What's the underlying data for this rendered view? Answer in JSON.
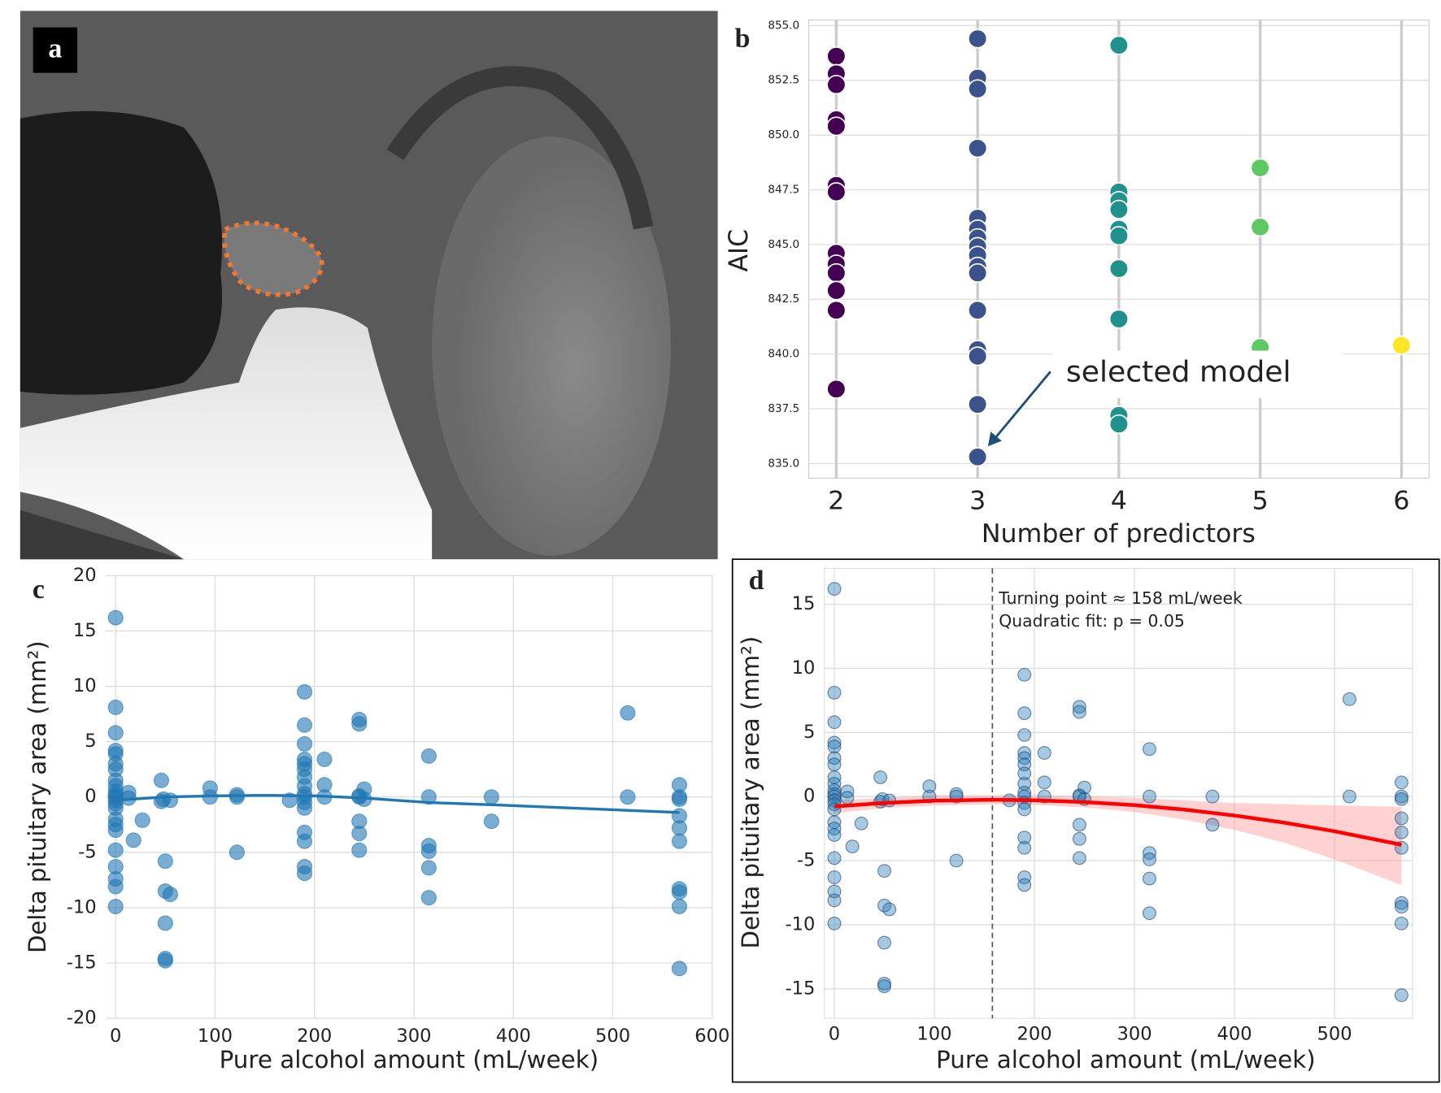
{
  "image_panel": {
    "label": "a"
  },
  "chart_data": [
    {
      "type": "scatter",
      "panel_label": "b",
      "xlabel": "Number of predictors",
      "ylabel": "AIC",
      "xlim": [
        1.805,
        6.195
      ],
      "ylim": [
        834.33,
        855.25
      ],
      "xticks": [
        2,
        3,
        4,
        5,
        6
      ],
      "yticks": [
        {
          "value": 835,
          "label": "835.0"
        },
        {
          "value": 837.5,
          "label": "837.5"
        },
        {
          "value": 840,
          "label": "840.0"
        },
        {
          "value": 842.5,
          "label": "842.5"
        },
        {
          "value": 845,
          "label": "845.0"
        },
        {
          "value": 847.5,
          "label": "847.5"
        },
        {
          "value": 850,
          "label": "850.0"
        },
        {
          "value": 852.5,
          "label": "852.5"
        },
        {
          "value": 855,
          "label": "855.0"
        }
      ],
      "grid": true,
      "annotation": "selected model",
      "series": [
        {
          "color": "#440154",
          "x": [
            2,
            2,
            2,
            2,
            2,
            2,
            2,
            2,
            2,
            2,
            2,
            2,
            2
          ],
          "values": [
            853.6,
            852.8,
            852.3,
            850.7,
            850.4,
            847.7,
            847.4,
            844.6,
            844.1,
            843.7,
            842.9,
            842.0,
            838.4
          ]
        },
        {
          "color": "#3b528b",
          "x": [
            3,
            3,
            3,
            3,
            3,
            3,
            3,
            3,
            3,
            3,
            3,
            3,
            3,
            3,
            3,
            3
          ],
          "values": [
            854.4,
            852.6,
            852.1,
            849.4,
            846.2,
            845.7,
            845.3,
            844.9,
            844.5,
            844.0,
            843.7,
            842.0,
            840.2,
            839.9,
            837.7,
            835.3
          ]
        },
        {
          "color": "#21918c",
          "x": [
            4,
            4,
            4,
            4,
            4,
            4,
            4,
            4,
            4,
            4
          ],
          "values": [
            854.1,
            847.4,
            847.0,
            846.6,
            845.7,
            845.4,
            843.9,
            841.6,
            837.2,
            836.8
          ]
        },
        {
          "color": "#5ec962",
          "x": [
            5,
            5,
            5
          ],
          "values": [
            848.5,
            845.8,
            840.3
          ]
        },
        {
          "color": "#fde725",
          "x": [
            6
          ],
          "values": [
            840.4
          ]
        }
      ]
    },
    {
      "type": "scatter",
      "panel_label": "c",
      "xlabel": "Pure alcohol amount (mL/week)",
      "ylabel": "Delta pituitary area (mm²)",
      "xlim": [
        -10,
        600
      ],
      "ylim": [
        -20,
        20
      ],
      "xticks": [
        0,
        100,
        200,
        300,
        400,
        500,
        600
      ],
      "yticks": [
        -20,
        -15,
        -10,
        -5,
        0,
        5,
        10,
        15,
        20
      ],
      "grid": true,
      "series": [
        {
          "color": "#1f77b4",
          "x": [
            0,
            0,
            0,
            0,
            0,
            0,
            0,
            0,
            0,
            0,
            0,
            0,
            0,
            0,
            0,
            0,
            0,
            0,
            0,
            0,
            0,
            0,
            0,
            13,
            13,
            18,
            27,
            46,
            46,
            48,
            50,
            50,
            50,
            50,
            50,
            55,
            55,
            95,
            95,
            122,
            122,
            122,
            175,
            190,
            190,
            190,
            190,
            190,
            190,
            190,
            190,
            190,
            190,
            190,
            190,
            190,
            190,
            190,
            190,
            210,
            210,
            210,
            245,
            245,
            245,
            245,
            245,
            245,
            245,
            250,
            250,
            315,
            315,
            315,
            315,
            315,
            315,
            378,
            378,
            515,
            515,
            567,
            567,
            567,
            567,
            567,
            567,
            567,
            567,
            567,
            567
          ],
          "values": [
            16.2,
            8.1,
            5.8,
            4.2,
            3.9,
            3.0,
            2.5,
            1.5,
            1.0,
            0.5,
            0.2,
            0,
            -0.3,
            -0.6,
            -1.0,
            -2.0,
            -2.5,
            -3.0,
            -4.8,
            -6.3,
            -7.4,
            -8.1,
            -9.9,
            0.4,
            -0.1,
            -3.9,
            -2.1,
            1.5,
            -0.4,
            -0.2,
            -5.8,
            -8.5,
            -11.4,
            -14.6,
            -14.8,
            -0.3,
            -8.8,
            0.8,
            0,
            0.2,
            0,
            -5.0,
            -0.3,
            9.5,
            6.5,
            4.8,
            3.4,
            3.0,
            2.5,
            1.8,
            1.0,
            0.3,
            0,
            -0.5,
            -1.0,
            -3.2,
            -4.0,
            -6.3,
            -6.9,
            3.4,
            1.1,
            0,
            7.0,
            6.6,
            0.1,
            0,
            -2.2,
            -3.3,
            -4.8,
            0.7,
            -0.2,
            3.7,
            0,
            -4.4,
            -4.9,
            -6.4,
            -9.1,
            0,
            -2.2,
            7.6,
            0,
            1.1,
            0,
            -0.2,
            -1.7,
            -2.8,
            -4.0,
            -8.3,
            -8.6,
            -9.9,
            -15.5
          ]
        }
      ],
      "line": {
        "color": "#1f77b4",
        "x": [
          0,
          50,
          100,
          150,
          200,
          250,
          315,
          378,
          567
        ],
        "values": [
          -0.3,
          0.0,
          0.1,
          0.15,
          0.1,
          -0.1,
          -0.5,
          -0.7,
          -1.4
        ]
      }
    },
    {
      "type": "scatter",
      "panel_label": "d",
      "xlabel": "Pure alcohol amount (mL/week)",
      "ylabel": "Delta pituitary area (mm²)",
      "xlim": [
        -10,
        578
      ],
      "ylim": [
        -17.3,
        17.8
      ],
      "xticks": [
        0,
        100,
        200,
        300,
        400,
        500
      ],
      "yticks": [
        -15,
        -10,
        -5,
        0,
        5,
        10,
        15
      ],
      "grid": true,
      "turning_point": 158,
      "annotations": [
        "Turning point ≈ 158 mL/week",
        "Quadratic fit: p = 0.05"
      ],
      "series": [
        {
          "color": "#1f77b4",
          "x": [
            0,
            0,
            0,
            0,
            0,
            0,
            0,
            0,
            0,
            0,
            0,
            0,
            0,
            0,
            0,
            0,
            0,
            0,
            0,
            0,
            0,
            0,
            0,
            13,
            13,
            18,
            27,
            46,
            46,
            48,
            50,
            50,
            50,
            50,
            50,
            55,
            55,
            95,
            95,
            122,
            122,
            122,
            175,
            190,
            190,
            190,
            190,
            190,
            190,
            190,
            190,
            190,
            190,
            190,
            190,
            190,
            190,
            190,
            190,
            210,
            210,
            210,
            245,
            245,
            245,
            245,
            245,
            245,
            245,
            250,
            250,
            315,
            315,
            315,
            315,
            315,
            315,
            378,
            378,
            515,
            515,
            567,
            567,
            567,
            567,
            567,
            567,
            567,
            567,
            567,
            567
          ],
          "values": [
            16.2,
            8.1,
            5.8,
            4.2,
            3.9,
            3.0,
            2.5,
            1.5,
            1.0,
            0.5,
            0.2,
            0,
            -0.3,
            -0.6,
            -1.0,
            -2.0,
            -2.5,
            -3.0,
            -4.8,
            -6.3,
            -7.4,
            -8.1,
            -9.9,
            0.4,
            -0.1,
            -3.9,
            -2.1,
            1.5,
            -0.4,
            -0.2,
            -5.8,
            -8.5,
            -11.4,
            -14.6,
            -14.8,
            -0.3,
            -8.8,
            0.8,
            0,
            0.2,
            0,
            -5.0,
            -0.3,
            9.5,
            6.5,
            4.8,
            3.4,
            3.0,
            2.5,
            1.8,
            1.0,
            0.3,
            0,
            -0.5,
            -1.0,
            -3.2,
            -4.0,
            -6.3,
            -6.9,
            3.4,
            1.1,
            0,
            7.0,
            6.6,
            0.1,
            0,
            -2.2,
            -3.3,
            -4.8,
            0.7,
            -0.2,
            3.7,
            0,
            -4.4,
            -4.9,
            -6.4,
            -9.1,
            0,
            -2.2,
            7.6,
            0,
            1.1,
            0,
            -0.2,
            -1.7,
            -2.8,
            -4.0,
            -8.3,
            -8.6,
            -9.9,
            -15.5
          ]
        }
      ],
      "fit": {
        "color": "#ff0000",
        "ci_color": "#ff9999",
        "x": [
          0,
          50,
          100,
          158,
          200,
          250,
          300,
          350,
          400,
          450,
          500,
          567
        ],
        "values": [
          -0.77,
          -0.5,
          -0.32,
          -0.25,
          -0.29,
          -0.43,
          -0.67,
          -1.02,
          -1.48,
          -2.04,
          -2.71,
          -3.76
        ],
        "ci_lower": [
          -1.3,
          -0.9,
          -0.7,
          -0.6,
          -0.65,
          -0.85,
          -1.2,
          -1.8,
          -2.6,
          -3.6,
          -4.9,
          -6.9
        ],
        "ci_upper": [
          -0.3,
          -0.1,
          0.1,
          0.1,
          0.1,
          0.05,
          -0.1,
          -0.3,
          -0.5,
          -0.6,
          -0.7,
          -0.8
        ]
      }
    }
  ]
}
